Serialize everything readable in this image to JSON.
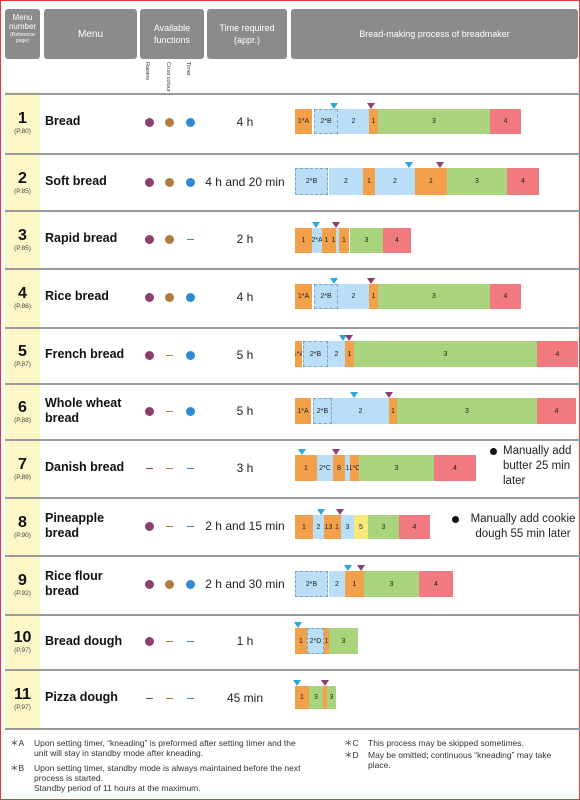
{
  "header": {
    "menu_number": "Menu number",
    "menu_number_sub": "(Reference page)",
    "menu": "Menu",
    "available_functions": "Available functions",
    "time_required": "Time required (appr.)",
    "process": "Bread-making process of breadmaker",
    "func_labels": [
      "Raisins",
      "Crust colour",
      "Timer"
    ]
  },
  "colors": {
    "raisins": "#8b3f6e",
    "crust": "#b07d3e",
    "timer": "#2f8ad1",
    "knead1": "#f2a14a",
    "knead2": "#b9def6",
    "rise": "#a9d37d",
    "bake": "#f07a80",
    "proc5": "#f6e97a",
    "tri_blue": "#2aa9d8",
    "tri_purple": "#8b3f6e"
  },
  "rows": [
    {
      "num": "1",
      "ref": "(P.80)",
      "name": "Bread",
      "funcs": [
        "raisins",
        "crust",
        "timer"
      ],
      "time": "4 h"
    },
    {
      "num": "2",
      "ref": "(P.85)",
      "name": "Soft bread",
      "funcs": [
        "raisins",
        "crust",
        "timer"
      ],
      "time": "4 h and 20 min"
    },
    {
      "num": "3",
      "ref": "(P.85)",
      "name": "Rapid bread",
      "funcs": [
        "raisins",
        "crust",
        "none"
      ],
      "time": "2 h"
    },
    {
      "num": "4",
      "ref": "(P.86)",
      "name": "Rice bread",
      "funcs": [
        "raisins",
        "crust",
        "timer"
      ],
      "time": "4 h"
    },
    {
      "num": "5",
      "ref": "(P.87)",
      "name": "French bread",
      "funcs": [
        "raisins",
        "none",
        "timer"
      ],
      "time": "5 h"
    },
    {
      "num": "6",
      "ref": "(P.88)",
      "name": "Whole wheat bread",
      "funcs": [
        "raisins",
        "none",
        "timer"
      ],
      "time": "5 h"
    },
    {
      "num": "7",
      "ref": "(P.89)",
      "name": "Danish bread",
      "funcs": [
        "none",
        "none",
        "none"
      ],
      "time": "3 h",
      "note": "Manually add butter 25 min later"
    },
    {
      "num": "8",
      "ref": "(P.90)",
      "name": "Pineapple bread",
      "funcs": [
        "raisins",
        "none",
        "none"
      ],
      "time": "2 h and 15 min",
      "note": "Manually add cookie dough 55 min later"
    },
    {
      "num": "9",
      "ref": "(P.92)",
      "name": "Rice flour bread",
      "funcs": [
        "raisins",
        "crust",
        "timer"
      ],
      "time": "2 h and 30 min"
    },
    {
      "num": "10",
      "ref": "(P.97)",
      "name": "Bread dough",
      "funcs": [
        "raisins",
        "none",
        "none"
      ],
      "time": "1 h"
    },
    {
      "num": "11",
      "ref": "(P.97)",
      "name": "Pizza dough",
      "funcs": [
        "none",
        "none",
        "none"
      ],
      "time": "45 min"
    }
  ],
  "footnotes": {
    "a_key": "＊A",
    "a_text": "Upon setting timer, “kneading” is preformed after setting timer and the unit will stay in standby mode after kneading.",
    "b_key": "＊B",
    "b_text": "Upon setting timer, standby mode is always maintained before the next process is started.",
    "b_text2": "Standby period of 11 hours at the maximum.",
    "c_key": "＊C",
    "c_text": "This process may be skipped sometimes.",
    "d_key": "＊D",
    "d_text": "May be omitted; continuous “kneading” may take place."
  }
}
